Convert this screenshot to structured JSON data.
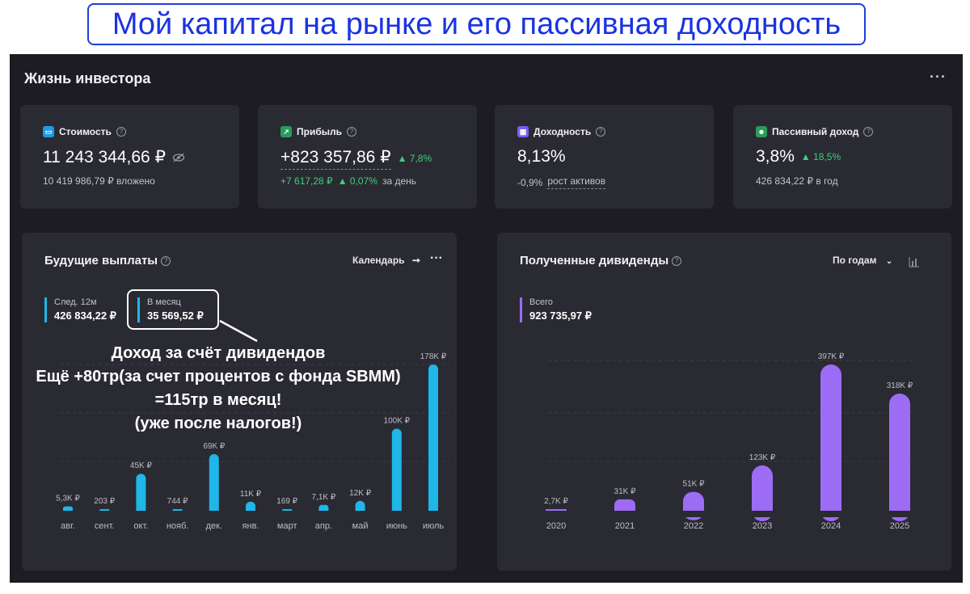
{
  "banner": "Мой капитал на рынке и его пассивная доходность",
  "app": {
    "title": "Жизнь инвестора",
    "menu": "···"
  },
  "stats": [
    {
      "label": "Стоимость",
      "icon": "wallet-icon",
      "color": "#1e9be8",
      "big": "11 243 344,66 ₽",
      "sub": "10 419 986,79 ₽ вложено"
    },
    {
      "label": "Прибыль",
      "icon": "chart-line-icon",
      "color": "#2b9a5a",
      "big": "+823 357,86 ₽",
      "big_delta": "7,8%",
      "sub_green": "+7 617,28 ₽",
      "sub_delta": "0,07%",
      "sub_tail": "за день"
    },
    {
      "label": "Доходность",
      "icon": "calendar-icon",
      "color": "#7b5cf0",
      "big": "8,13%",
      "sub": "-0,9%",
      "sub_link": "рост активов"
    },
    {
      "label": "Пассивный доход",
      "icon": "robot-icon",
      "color": "#2b9a5a",
      "big": "3,8%",
      "big_delta": "18,5%",
      "sub": "426 834,22 ₽ в год"
    }
  ],
  "future": {
    "title": "Будущие выплаты",
    "calendar_label": "Календарь",
    "dots": "···",
    "legend": [
      {
        "label": "След. 12м",
        "value": "426 834,22 ₽"
      },
      {
        "label": "В месяц",
        "value": "35 569,52 ₽"
      }
    ]
  },
  "received": {
    "title": "Полученные дивиденды",
    "period_label": "По годам",
    "legend": {
      "label": "Всего",
      "value": "923 735,97 ₽"
    }
  },
  "annotation": [
    "Доход за счёт дивидендов",
    "Ещё +80тр(за счет процентов с фонда SBMM)",
    "=115тр в месяц!",
    "(уже после налогов!)"
  ],
  "chart_data": [
    {
      "type": "bar",
      "title": "Будущие выплаты",
      "color": "#1fb6e8",
      "categories": [
        "авг.",
        "сент.",
        "окт.",
        "нояб.",
        "дек.",
        "янв.",
        "март",
        "апр.",
        "май",
        "июнь",
        "июль"
      ],
      "values": [
        5300,
        203,
        45000,
        744,
        69000,
        11000,
        169,
        7100,
        12000,
        100000,
        178000
      ],
      "labels": [
        "5,3K ₽",
        "203 ₽",
        "45K ₽",
        "744 ₽",
        "69K ₽",
        "11K ₽",
        "169 ₽",
        "7,1K ₽",
        "12K ₽",
        "100K ₽",
        "178K ₽"
      ],
      "ylim": [
        0,
        178000
      ]
    },
    {
      "type": "bar",
      "title": "Полученные дивиденды",
      "color": "#9d6cf5",
      "categories": [
        "2020",
        "2021",
        "2022",
        "2023",
        "2024",
        "2025"
      ],
      "values": [
        2700,
        31000,
        51000,
        123000,
        397000,
        318000
      ],
      "labels": [
        "2,7K ₽",
        "31K ₽",
        "51K ₽",
        "123K ₽",
        "397K ₽",
        "318K ₽"
      ],
      "ylim": [
        0,
        397000
      ]
    }
  ]
}
